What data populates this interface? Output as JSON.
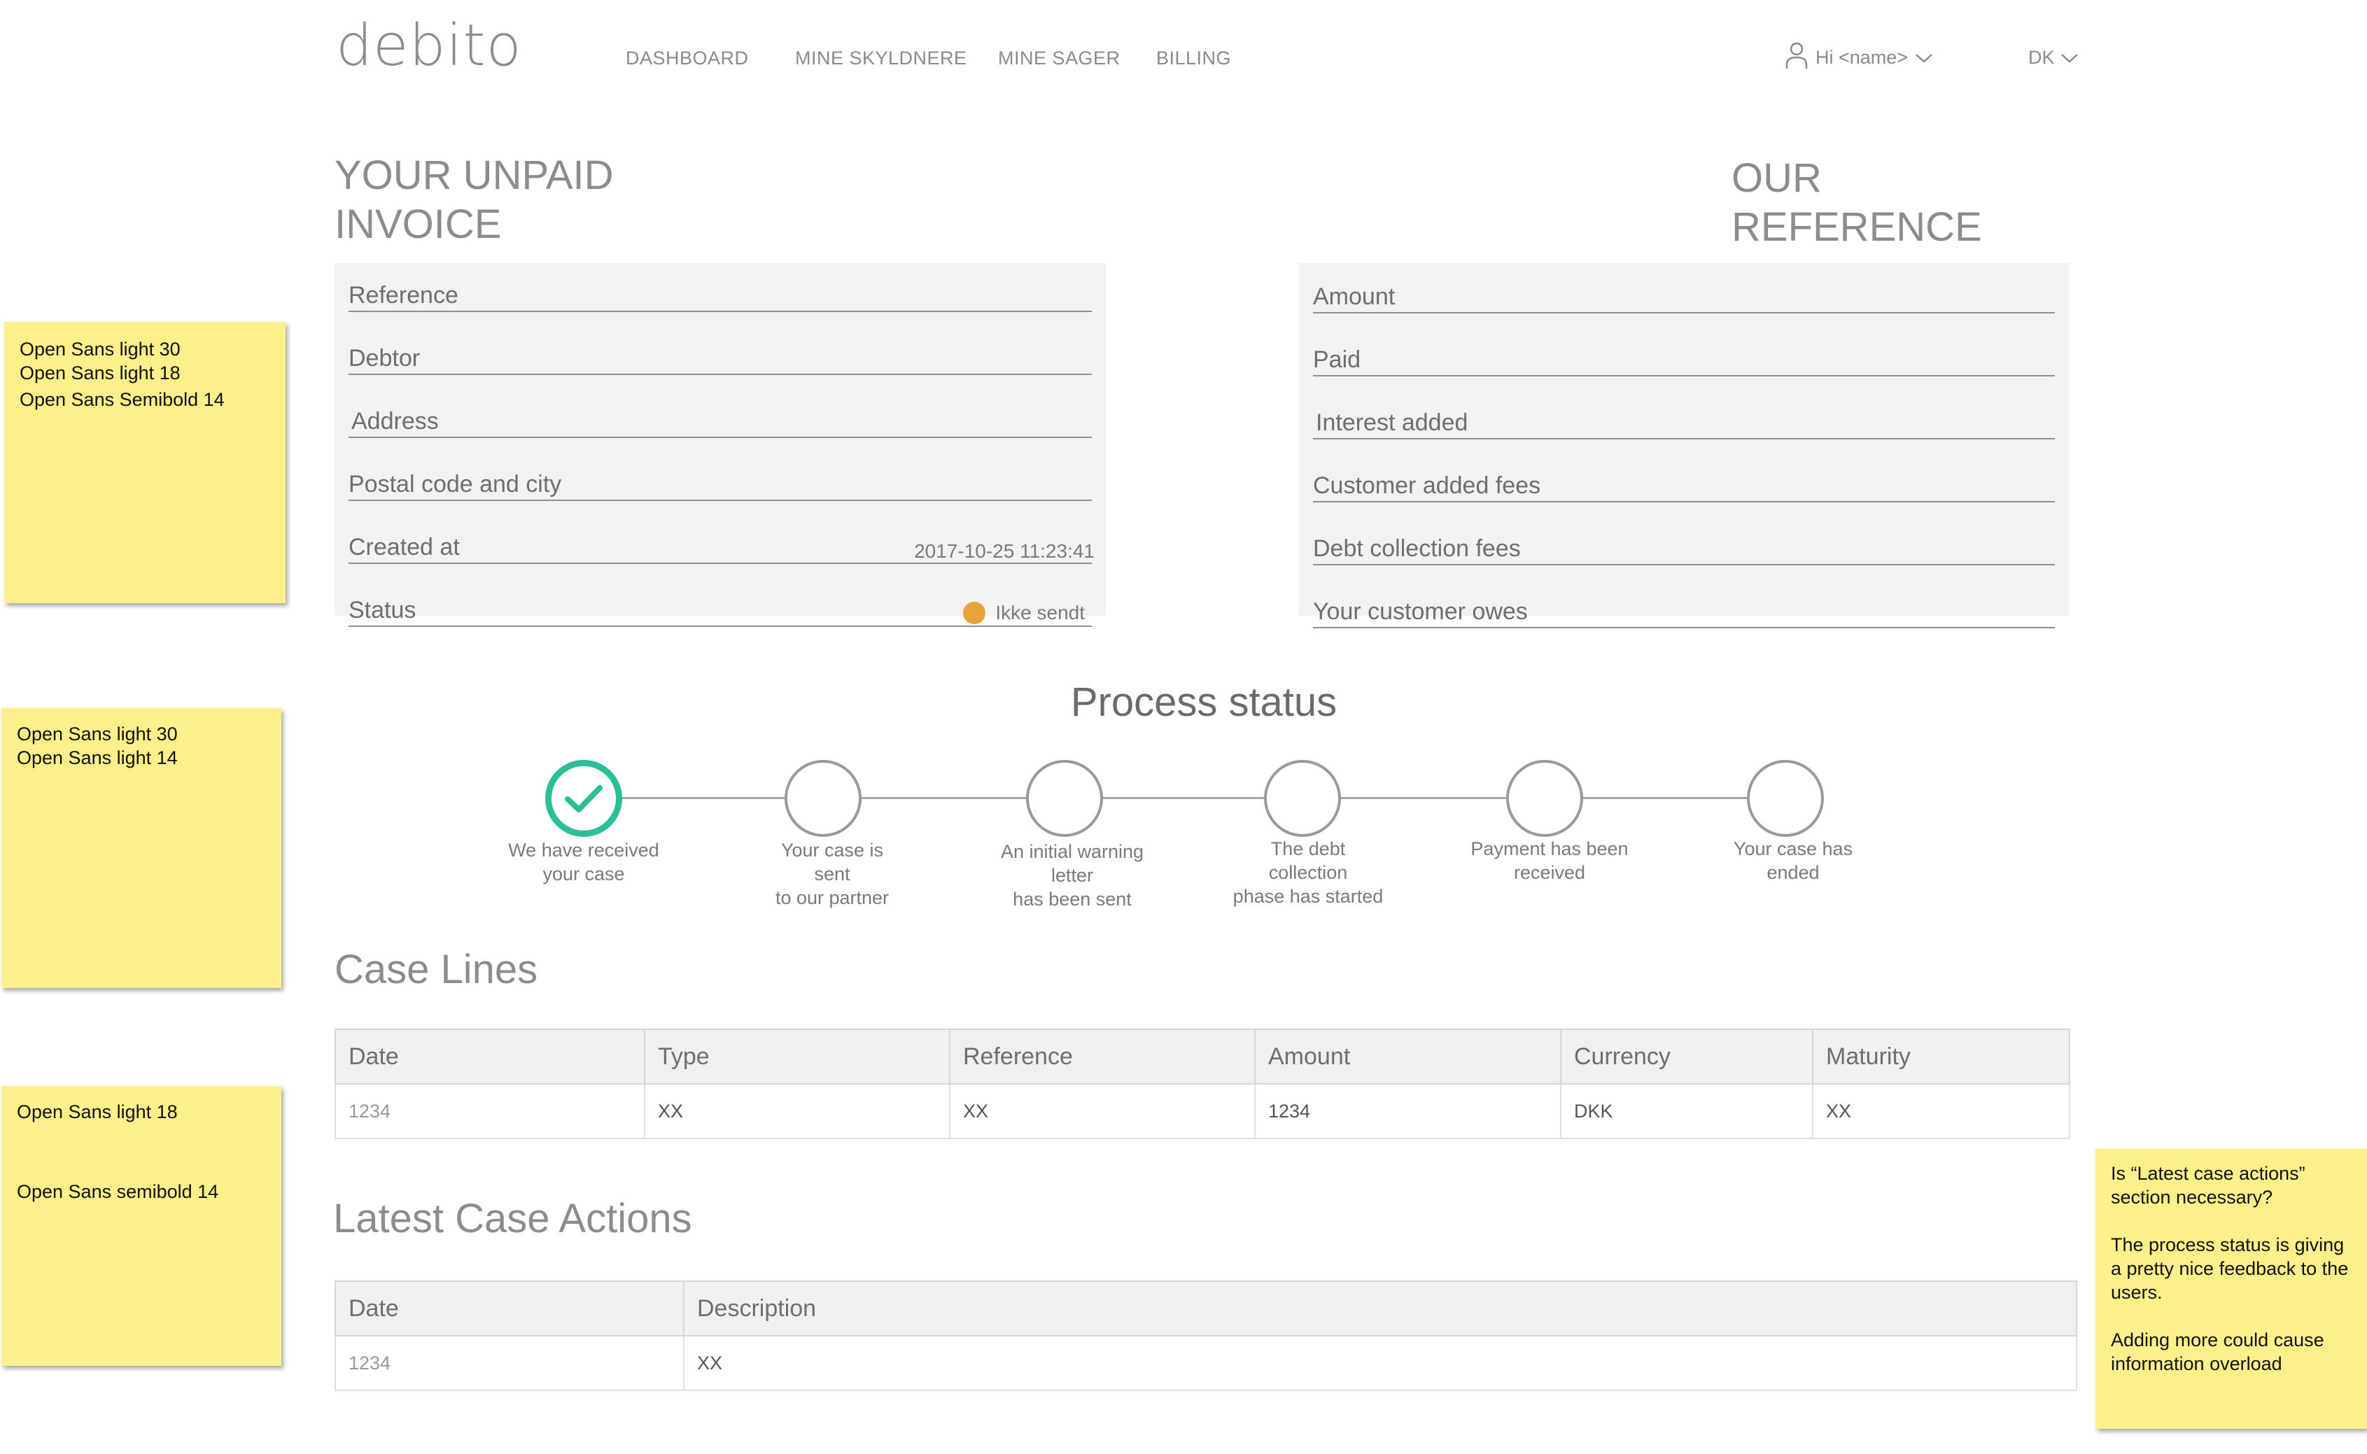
{
  "header": {
    "logo": "debito",
    "nav": [
      {
        "label": "DASHBOARD"
      },
      {
        "label": "MINE SKYLDNERE"
      },
      {
        "label": "MINE SAGER"
      },
      {
        "label": "BILLING"
      }
    ],
    "user_greeting": "Hi <name>",
    "language": "DK"
  },
  "invoice": {
    "title_line1": "YOUR UNPAID",
    "title_line2": "INVOICE",
    "fields": [
      {
        "label": "Reference",
        "value": ""
      },
      {
        "label": "Debtor",
        "value": ""
      },
      {
        "label": "Address",
        "value": ""
      },
      {
        "label": "Postal code and city",
        "value": ""
      },
      {
        "label": "Created at",
        "value": "2017-10-25 11:23:41"
      },
      {
        "label": "Status",
        "value": "Ikke sendt"
      }
    ],
    "status_color": "#e8a33b"
  },
  "reference": {
    "title_line1": "OUR",
    "title_line2": "REFERENCE",
    "fields": [
      {
        "label": "Amount"
      },
      {
        "label": "Paid"
      },
      {
        "label": "Interest added"
      },
      {
        "label": "Customer added fees"
      },
      {
        "label": "Debt collection fees"
      },
      {
        "label": "Your customer owes"
      }
    ]
  },
  "process": {
    "title": "Process status",
    "accent_color": "#2abf97",
    "steps": [
      {
        "label": "We have received\nyour case",
        "done": true,
        "icon": "check-icon"
      },
      {
        "label": "Your case is\nsent\nto our partner",
        "done": false
      },
      {
        "label": "An initial warning\nletter\nhas been sent",
        "done": false
      },
      {
        "label": "The debt\ncollection\nphase has started",
        "done": false
      },
      {
        "label": "Payment has been\nreceived",
        "done": false
      },
      {
        "label": "Your case has\nended",
        "done": false
      }
    ]
  },
  "case_lines": {
    "title": "Case Lines",
    "columns": [
      "Date",
      "Type",
      "Reference",
      "Amount",
      "Currency",
      "Maturity"
    ],
    "rows": [
      [
        "1234",
        "XX",
        "XX",
        "1234",
        "DKK",
        "XX"
      ]
    ]
  },
  "latest_actions": {
    "title": "Latest Case Actions",
    "columns": [
      "Date",
      "Description"
    ],
    "rows": [
      [
        "1234",
        "XX"
      ]
    ]
  },
  "notes": {
    "note1": [
      "Open Sans light 30",
      "Open Sans light 18",
      "Open Sans Semibold 14"
    ],
    "note2": [
      "Open Sans light 30",
      "Open Sans light 14"
    ],
    "note3": [
      "Open Sans light 18",
      "Open Sans semibold 14"
    ],
    "note4": [
      "Is “Latest case actions” section necessary?",
      "The process status is giving a pretty nice feedback to the users.",
      "Adding more could cause information overload"
    ]
  }
}
